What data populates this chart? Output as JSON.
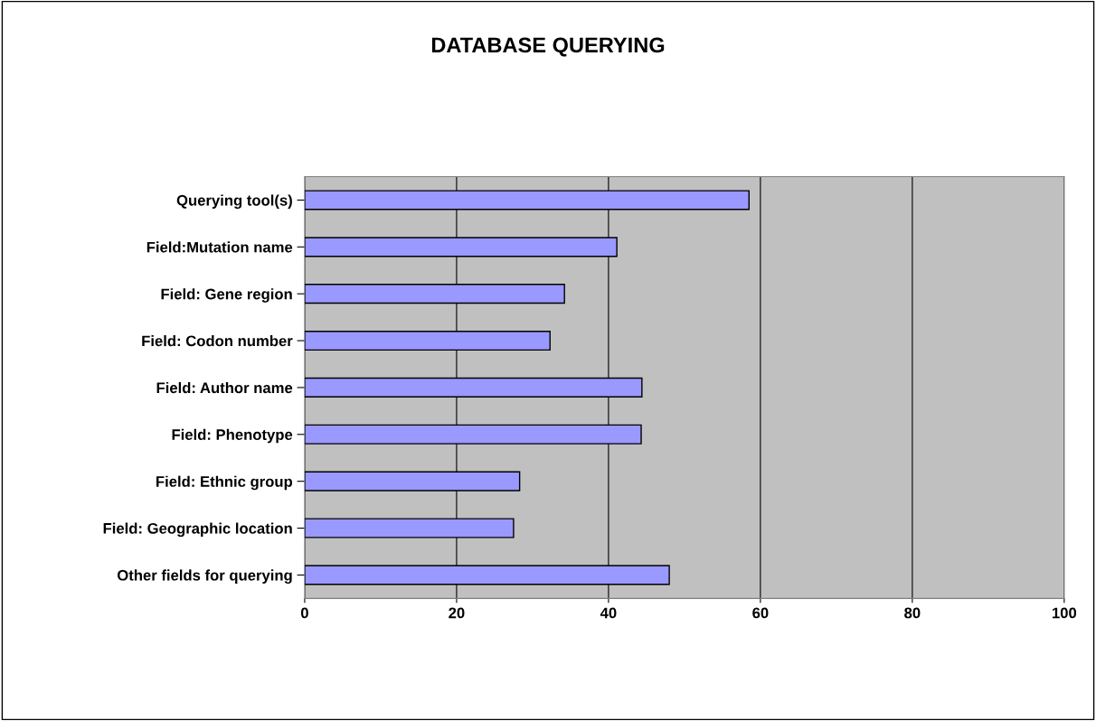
{
  "chart_data": {
    "type": "bar",
    "title": "DATABASE QUERYING",
    "orientation": "horizontal",
    "categories": [
      "Querying tool(s)",
      "Field:Mutation name",
      "Field: Gene region",
      "Field: Codon number",
      "Field: Author name",
      "Field: Phenotype",
      "Field: Ethnic group",
      "Field: Geographic location",
      "Other fields for querying"
    ],
    "values": [
      58.5,
      41.1,
      34.2,
      32.3,
      44.4,
      44.3,
      28.3,
      27.5,
      48.0
    ],
    "color": "#9999ff",
    "xlim": [
      0,
      100
    ],
    "xticks": [
      0,
      20,
      40,
      60,
      80,
      100
    ],
    "grid": "x",
    "legend": false
  }
}
